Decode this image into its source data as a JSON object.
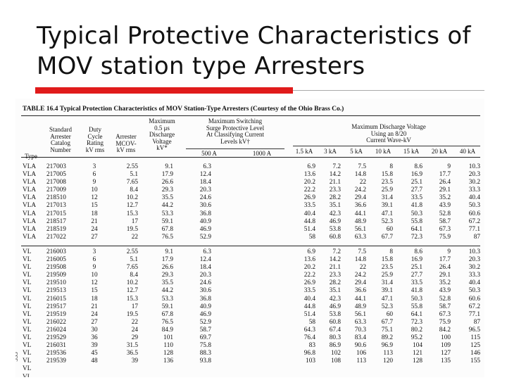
{
  "title": "Typical Protective Characteristics of MOV station type Arresters",
  "page_number": "535",
  "table": {
    "caption": "TABLE 16.4   Typical Protection Characteristics of MOV Station-Type Arresters (Courtesy of the Ohio Brass Co.)",
    "headers": {
      "type": "Type",
      "catalog": "Standard\nArrester\nCatalog\nNumber",
      "duty": "Duty\nCycle\nRating\nkV rms",
      "mcov": "Arrester\nMCOV-\nkV rms",
      "max05": "Maximum\n0.5 μs\nDischarge\nVoltage\nkV*",
      "switching": "Maximum Switching\nSurge Protective Level\nAt Classifying Current\nLevels kV†",
      "discharge": "Maximum Discharge Voltage\nUsing an 8/20\nCurrent Wave-kV"
    },
    "switching_sub": [
      "500 A",
      "1000 A"
    ],
    "discharge_sub": [
      "1.5 kA",
      "3 kA",
      "5 kA",
      "10 kA",
      "15 kA",
      "20 kA",
      "40 kA"
    ],
    "vla": {
      "type": [
        "VLA",
        "VLA",
        "VLA",
        "VLA",
        "VLA",
        "VLA",
        "VLA",
        "VLA",
        "VLA",
        "VLA"
      ],
      "catalog": [
        "217003",
        "217005",
        "217008",
        "217009",
        "218510",
        "217013",
        "217015",
        "218517",
        "218519",
        "217022"
      ],
      "duty": [
        "3",
        "6",
        "9",
        "10",
        "12",
        "15",
        "18",
        "21",
        "24",
        "27"
      ],
      "mcov": [
        "2.55",
        "5.1",
        "7.65",
        "8.4",
        "10.2",
        "12.7",
        "15.3",
        "17",
        "19.5",
        "22"
      ],
      "max05": [
        "9.1",
        "17.9",
        "26.6",
        "29.3",
        "35.5",
        "44.2",
        "53.3",
        "59.1",
        "67.8",
        "76.5"
      ],
      "s500": [
        "6.3",
        "12.4",
        "18.4",
        "20.3",
        "24.6",
        "30.6",
        "36.8",
        "40.9",
        "46.9",
        "52.9"
      ],
      "s1000": [
        "",
        "",
        "",
        "",
        "",
        "",
        "",
        "",
        "",
        ""
      ],
      "d1_5": [
        "6.9",
        "13.6",
        "20.2",
        "22.2",
        "26.9",
        "33.5",
        "40.4",
        "44.8",
        "51.4",
        "58"
      ],
      "d3": [
        "7.2",
        "14.2",
        "21.1",
        "23.3",
        "28.2",
        "35.1",
        "42.3",
        "46.9",
        "53.8",
        "60.8"
      ],
      "d5": [
        "7.5",
        "14.8",
        "22",
        "24.2",
        "29.4",
        "36.6",
        "44.1",
        "48.9",
        "56.1",
        "63.3"
      ],
      "d10": [
        "8",
        "15.8",
        "23.5",
        "25.9",
        "31.4",
        "39.1",
        "47.1",
        "52.3",
        "60",
        "67.7"
      ],
      "d15": [
        "8.6",
        "16.9",
        "25.1",
        "27.7",
        "33.5",
        "41.8",
        "50.3",
        "55.8",
        "64.1",
        "72.3"
      ],
      "d20": [
        "9",
        "17.7",
        "26.4",
        "29.1",
        "35.2",
        "43.9",
        "52.8",
        "58.7",
        "67.3",
        "75.9"
      ],
      "d40": [
        "10.3",
        "20.3",
        "30.2",
        "33.3",
        "40.4",
        "50.3",
        "60.6",
        "67.2",
        "77.1",
        "87"
      ]
    },
    "vl": {
      "type": [
        "VL",
        "VL",
        "VL",
        "VL",
        "VL",
        "VL",
        "VL",
        "VL",
        "VL",
        "VL",
        "VL",
        "VL",
        "VL",
        "VL",
        "VL",
        "VL",
        "VL"
      ],
      "catalog": [
        "216003",
        "216005",
        "219508",
        "219509",
        "219510",
        "219513",
        "216015",
        "219517",
        "219519",
        "216022",
        "216024",
        "219529",
        "216031",
        "219536",
        "219539",
        "",
        ""
      ],
      "duty": [
        "3",
        "6",
        "9",
        "10",
        "12",
        "15",
        "18",
        "21",
        "24",
        "27",
        "30",
        "36",
        "39",
        "45",
        "48",
        "",
        ""
      ],
      "mcov": [
        "2.55",
        "5.1",
        "7.65",
        "8.4",
        "10.2",
        "12.7",
        "15.3",
        "17",
        "19.5",
        "22",
        "24",
        "29",
        "31.5",
        "36.5",
        "39",
        "",
        ""
      ],
      "max05": [
        "9.1",
        "17.9",
        "26.6",
        "29.3",
        "35.5",
        "44.2",
        "53.3",
        "59.1",
        "67.8",
        "76.5",
        "84.9",
        "101",
        "110",
        "128",
        "136",
        "",
        ""
      ],
      "s500": [
        "6.3",
        "12.4",
        "18.4",
        "20.3",
        "24.6",
        "30.6",
        "36.8",
        "40.9",
        "46.9",
        "52.9",
        "58.7",
        "69.7",
        "75.8",
        "88.3",
        "93.8",
        "",
        ""
      ],
      "s1000": [
        "",
        "",
        "",
        "",
        "",
        "",
        "",
        "",
        "",
        "",
        "",
        "",
        "",
        "",
        "",
        "",
        ""
      ],
      "d1_5": [
        "6.9",
        "13.6",
        "20.2",
        "22.2",
        "26.9",
        "33.5",
        "40.4",
        "44.8",
        "51.4",
        "58",
        "64.3",
        "76.4",
        "83",
        "96.8",
        "103",
        "",
        ""
      ],
      "d3": [
        "7.2",
        "14.2",
        "21.1",
        "23.3",
        "28.2",
        "35.1",
        "42.3",
        "46.9",
        "53.8",
        "60.8",
        "67.4",
        "80.3",
        "86.9",
        "102",
        "108",
        "",
        ""
      ],
      "d5": [
        "7.5",
        "14.8",
        "22",
        "24.2",
        "29.4",
        "36.6",
        "44.1",
        "48.9",
        "56.1",
        "63.3",
        "70.3",
        "83.4",
        "90.6",
        "106",
        "113",
        "",
        ""
      ],
      "d10": [
        "8",
        "15.8",
        "23.5",
        "25.9",
        "31.4",
        "39.1",
        "47.1",
        "52.3",
        "60",
        "67.7",
        "75.1",
        "89.2",
        "96.9",
        "113",
        "120",
        "",
        ""
      ],
      "d15": [
        "8.6",
        "16.9",
        "25.1",
        "27.7",
        "33.5",
        "41.8",
        "50.3",
        "55.8",
        "64.1",
        "72.3",
        "80.2",
        "95.2",
        "104",
        "121",
        "128",
        "",
        ""
      ],
      "d20": [
        "9",
        "17.7",
        "26.4",
        "29.1",
        "35.2",
        "43.9",
        "52.8",
        "58.7",
        "67.3",
        "75.9",
        "84.2",
        "100",
        "109",
        "127",
        "135",
        "",
        ""
      ],
      "d40": [
        "10.3",
        "20.3",
        "30.2",
        "33.3",
        "40.4",
        "50.3",
        "60.6",
        "67.2",
        "77.1",
        "87",
        "96.5",
        "115",
        "125",
        "146",
        "155",
        "",
        ""
      ]
    }
  }
}
